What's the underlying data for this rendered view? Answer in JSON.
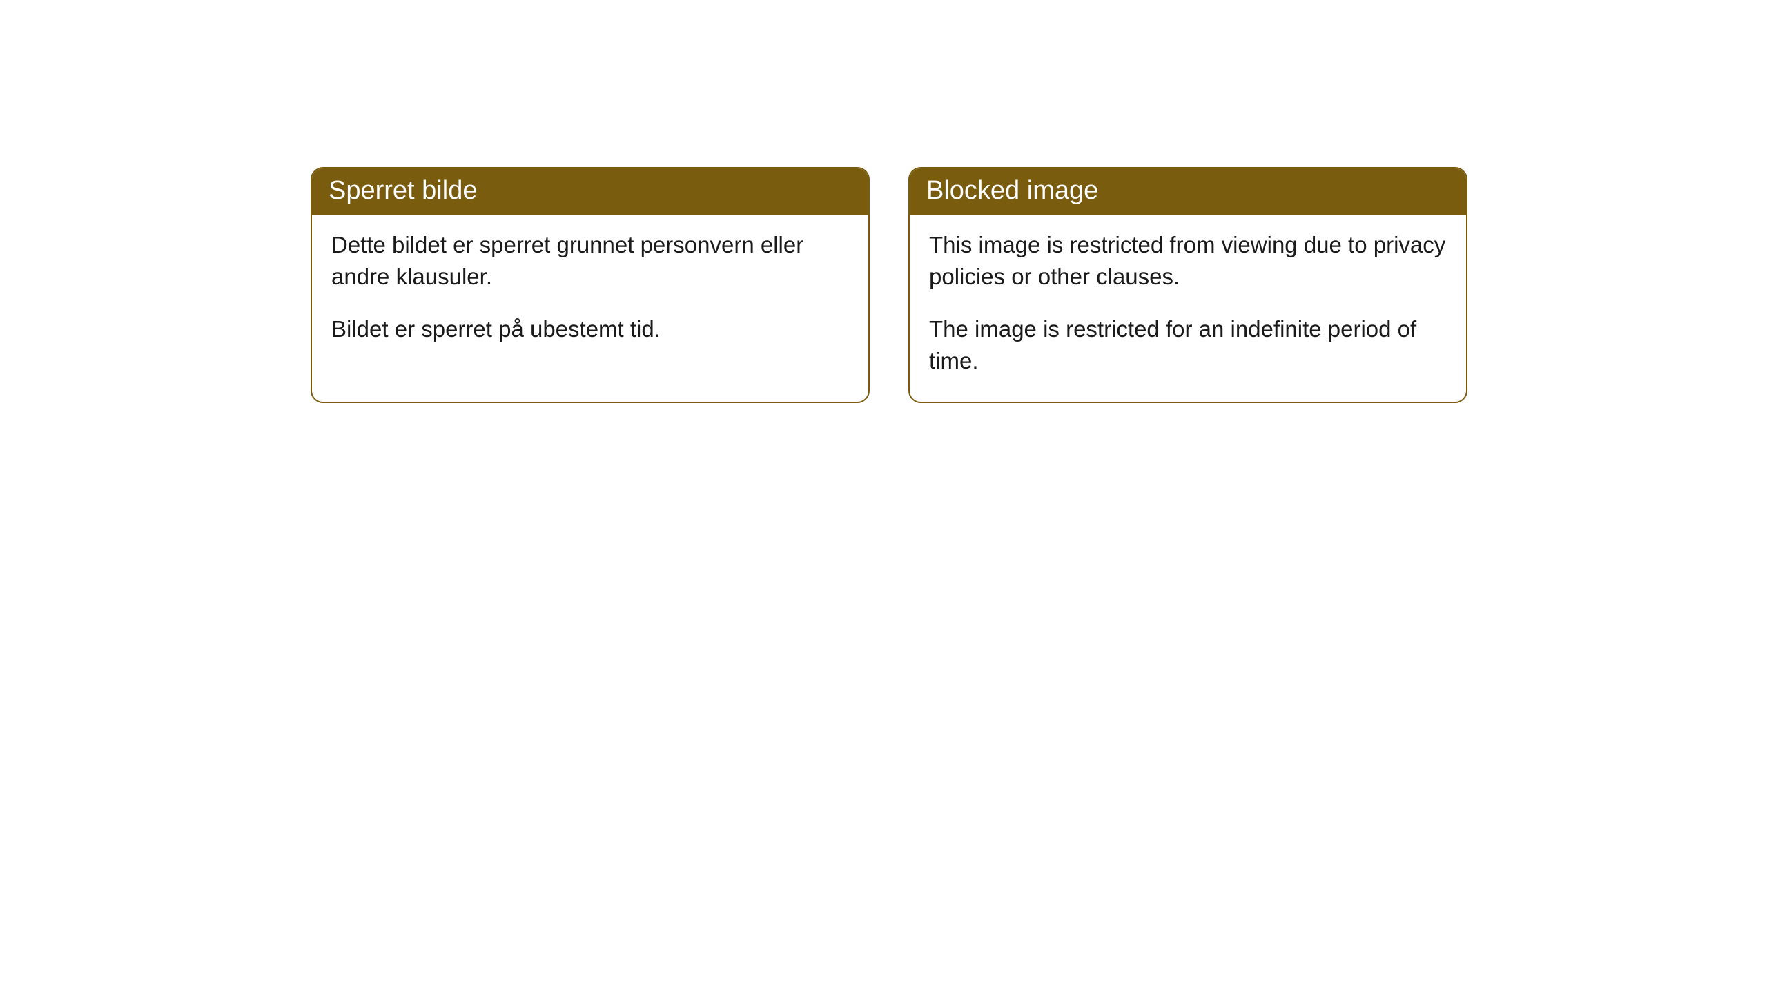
{
  "cards": [
    {
      "title": "Sperret bilde",
      "paragraph1": "Dette bildet er sperret grunnet personvern eller andre klausuler.",
      "paragraph2": "Bildet er sperret på ubestemt tid."
    },
    {
      "title": "Blocked image",
      "paragraph1": "This image is restricted from viewing due to privacy policies or other clauses.",
      "paragraph2": "The image is restricted for an indefinite period of time."
    }
  ],
  "styling": {
    "header_background": "#7a5c0f",
    "header_text_color": "#ffffff",
    "border_color": "#7a5c0f",
    "body_background": "#ffffff",
    "body_text_color": "#1a1a1a",
    "border_radius": 18,
    "header_fontsize": 38,
    "body_fontsize": 33
  }
}
